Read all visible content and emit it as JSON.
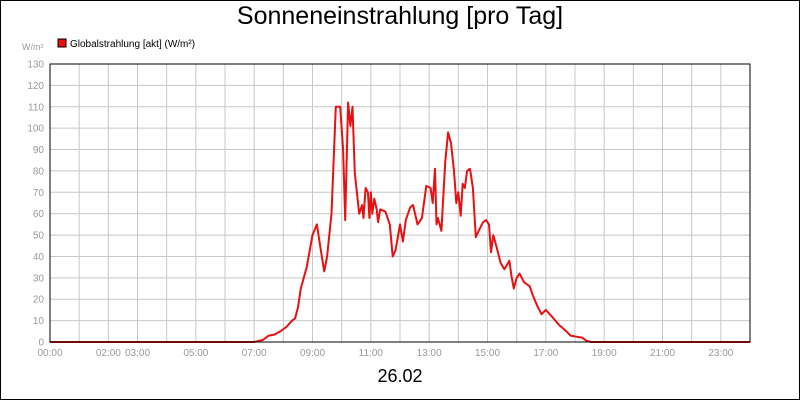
{
  "chart_data": {
    "type": "line",
    "title": "Sonneneinstrahlung [pro Tag]",
    "ylabel": "W/m²",
    "xlabel": "26.02",
    "ylim": [
      0,
      130
    ],
    "y_ticks": [
      0,
      10,
      20,
      30,
      40,
      50,
      60,
      70,
      80,
      90,
      100,
      110,
      120,
      130
    ],
    "x_ticks": [
      {
        "hour": 0,
        "label": "00:00"
      },
      {
        "hour": 2,
        "label": "02:00"
      },
      {
        "hour": 3,
        "label": "03:00"
      },
      {
        "hour": 5,
        "label": "05:00"
      },
      {
        "hour": 7,
        "label": "07:00"
      },
      {
        "hour": 9,
        "label": "09:00"
      },
      {
        "hour": 11,
        "label": "11:00"
      },
      {
        "hour": 13,
        "label": "13:00"
      },
      {
        "hour": 15,
        "label": "15:00"
      },
      {
        "hour": 17,
        "label": "17:00"
      },
      {
        "hour": 19,
        "label": "19:00"
      },
      {
        "hour": 21,
        "label": "21:00"
      },
      {
        "hour": 23,
        "label": "23:00"
      }
    ],
    "x_range_hours": [
      0,
      24
    ],
    "grid": true,
    "legend_position": "top-left",
    "series": [
      {
        "name": "Globalstrahlung [akt] (W/m²)",
        "color": "#e81010",
        "points": [
          [
            0,
            0
          ],
          [
            7.0,
            0
          ],
          [
            7.3,
            1
          ],
          [
            7.5,
            3
          ],
          [
            7.7,
            3.5
          ],
          [
            7.9,
            5
          ],
          [
            8.1,
            7
          ],
          [
            8.3,
            10
          ],
          [
            8.4,
            11
          ],
          [
            8.5,
            16
          ],
          [
            8.6,
            25
          ],
          [
            8.8,
            35
          ],
          [
            9.0,
            50
          ],
          [
            9.15,
            55
          ],
          [
            9.25,
            46
          ],
          [
            9.4,
            33
          ],
          [
            9.5,
            40
          ],
          [
            9.65,
            60
          ],
          [
            9.8,
            110
          ],
          [
            9.95,
            110
          ],
          [
            10.05,
            90
          ],
          [
            10.12,
            57
          ],
          [
            10.22,
            112
          ],
          [
            10.3,
            101
          ],
          [
            10.37,
            110
          ],
          [
            10.45,
            79
          ],
          [
            10.6,
            60
          ],
          [
            10.7,
            64
          ],
          [
            10.75,
            58
          ],
          [
            10.82,
            72
          ],
          [
            10.9,
            70
          ],
          [
            10.95,
            58
          ],
          [
            11.0,
            70
          ],
          [
            11.05,
            60
          ],
          [
            11.12,
            67
          ],
          [
            11.2,
            62
          ],
          [
            11.25,
            56
          ],
          [
            11.32,
            62
          ],
          [
            11.5,
            61
          ],
          [
            11.65,
            55
          ],
          [
            11.75,
            40
          ],
          [
            11.85,
            43
          ],
          [
            12.0,
            55
          ],
          [
            12.1,
            47
          ],
          [
            12.2,
            57
          ],
          [
            12.35,
            63
          ],
          [
            12.45,
            64
          ],
          [
            12.6,
            55
          ],
          [
            12.75,
            58
          ],
          [
            12.9,
            73
          ],
          [
            13.05,
            72
          ],
          [
            13.12,
            65
          ],
          [
            13.2,
            81
          ],
          [
            13.25,
            55
          ],
          [
            13.3,
            58
          ],
          [
            13.42,
            52
          ],
          [
            13.55,
            84
          ],
          [
            13.65,
            98
          ],
          [
            13.75,
            93
          ],
          [
            13.85,
            80
          ],
          [
            13.93,
            65
          ],
          [
            14.0,
            70
          ],
          [
            14.08,
            59
          ],
          [
            14.15,
            74
          ],
          [
            14.22,
            72
          ],
          [
            14.3,
            80
          ],
          [
            14.4,
            81
          ],
          [
            14.5,
            72
          ],
          [
            14.6,
            49
          ],
          [
            14.7,
            52
          ],
          [
            14.85,
            56
          ],
          [
            14.95,
            57
          ],
          [
            15.05,
            55
          ],
          [
            15.12,
            42
          ],
          [
            15.2,
            50
          ],
          [
            15.32,
            44
          ],
          [
            15.45,
            37
          ],
          [
            15.58,
            34
          ],
          [
            15.75,
            38
          ],
          [
            15.82,
            31
          ],
          [
            15.9,
            25
          ],
          [
            16.0,
            30
          ],
          [
            16.1,
            32
          ],
          [
            16.25,
            28
          ],
          [
            16.45,
            26
          ],
          [
            16.55,
            22
          ],
          [
            16.7,
            17
          ],
          [
            16.85,
            13
          ],
          [
            17.0,
            15
          ],
          [
            17.2,
            12
          ],
          [
            17.45,
            8
          ],
          [
            17.7,
            5
          ],
          [
            17.85,
            3
          ],
          [
            18.05,
            2.5
          ],
          [
            18.25,
            2
          ],
          [
            18.4,
            0.5
          ],
          [
            18.55,
            0
          ],
          [
            24,
            0
          ]
        ]
      }
    ]
  }
}
